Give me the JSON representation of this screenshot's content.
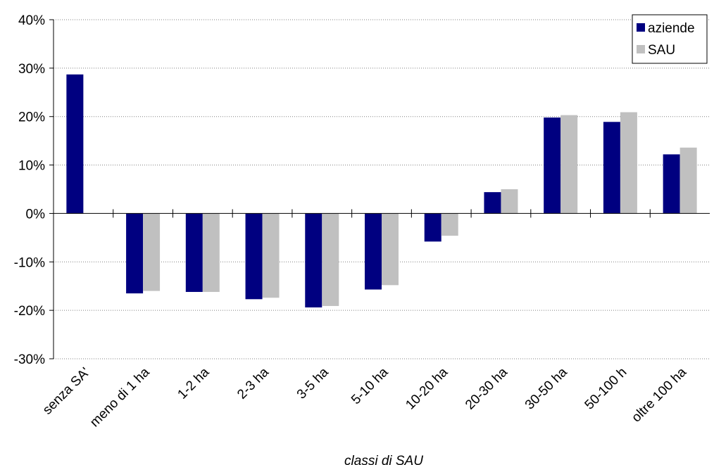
{
  "chart_data": {
    "type": "bar",
    "title": "",
    "xlabel": "classi di SAU",
    "ylabel": "",
    "ylim": [
      -0.3,
      0.4
    ],
    "yticks": [
      -0.3,
      -0.2,
      -0.1,
      0.0,
      0.1,
      0.2,
      0.3,
      0.4
    ],
    "ytick_labels": [
      "-30%",
      "-20%",
      "-10%",
      "0%",
      "10%",
      "20%",
      "30%",
      "40%"
    ],
    "grid": true,
    "legend_position": "top-right",
    "categories": [
      "senza SAU",
      "meno di 1 ha",
      "1-2 ha",
      "2-3 ha",
      "3-5 ha",
      "5-10 ha",
      "10-20 ha",
      "20-30 ha",
      "30-50 ha",
      "50-100 ha",
      "oltre 100 ha"
    ],
    "category_labels_visible": [
      "senza SA'",
      "meno di 1 ha",
      "1-2 ha",
      "2-3 ha",
      "3-5 ha",
      "5-10 ha",
      "10-20 ha",
      "20-30 ha",
      "30-50 ha",
      "50-100 h",
      "oltre 100 ha"
    ],
    "series": [
      {
        "name": "aziende",
        "color": "#000080",
        "values": [
          0.287,
          -0.165,
          -0.162,
          -0.177,
          -0.194,
          -0.157,
          -0.058,
          0.044,
          0.198,
          0.189,
          0.122
        ]
      },
      {
        "name": "SAU",
        "color": "#C0C0C0",
        "values": [
          null,
          -0.16,
          -0.162,
          -0.174,
          -0.191,
          -0.148,
          -0.046,
          0.05,
          0.203,
          0.209,
          0.136
        ]
      }
    ]
  }
}
